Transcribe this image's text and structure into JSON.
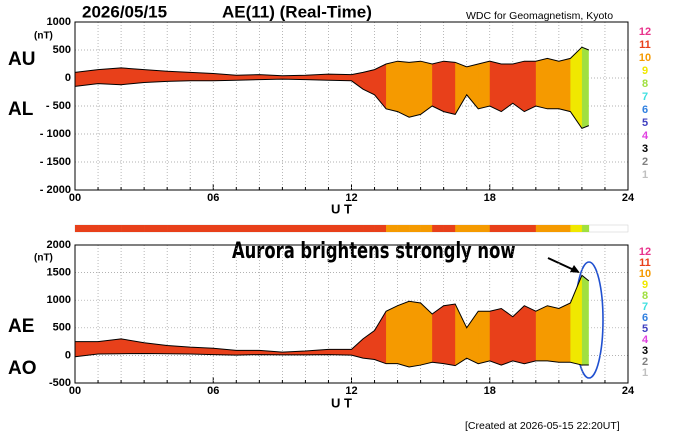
{
  "chart_data": [
    {
      "type": "band",
      "title": "2026/05/15",
      "subtitle": "AE(11) (Real-Time)",
      "source": "WDC for Geomagnetism, Kyoto",
      "y_unit": "(nT)",
      "x_label": "U T",
      "x": [
        0,
        1,
        2,
        3,
        4,
        5,
        6,
        7,
        8,
        9,
        10,
        11,
        12,
        12.5,
        13,
        13.5,
        14,
        14.5,
        15,
        15.5,
        16,
        16.5,
        17,
        17.5,
        18,
        18.5,
        19,
        19.5,
        20,
        20.5,
        21,
        21.5,
        22,
        22.3
      ],
      "series": [
        {
          "name": "AU",
          "color": "#000000",
          "values": [
            100,
            150,
            180,
            150,
            120,
            100,
            80,
            50,
            60,
            40,
            50,
            70,
            60,
            100,
            150,
            250,
            300,
            280,
            300,
            250,
            300,
            280,
            200,
            250,
            300,
            250,
            250,
            300,
            300,
            350,
            300,
            350,
            550,
            500
          ]
        },
        {
          "name": "AL",
          "color": "#000000",
          "values": [
            -150,
            -100,
            -120,
            -80,
            -60,
            -50,
            -50,
            -40,
            -30,
            -20,
            -30,
            -40,
            -50,
            -200,
            -300,
            -550,
            -600,
            -700,
            -650,
            -500,
            -600,
            -650,
            -300,
            -550,
            -500,
            -600,
            -450,
            -600,
            -500,
            -550,
            -550,
            -600,
            -900,
            -850
          ]
        }
      ],
      "stations": [
        11,
        11,
        11,
        11,
        11,
        11,
        11,
        11,
        11,
        11,
        11,
        11,
        11,
        11,
        11,
        10,
        10,
        10,
        10,
        11,
        11,
        10,
        10,
        10,
        11,
        11,
        11,
        11,
        10,
        10,
        10,
        9,
        8
      ],
      "levels": [
        12,
        11,
        10,
        9,
        8,
        7,
        6,
        5,
        4,
        3,
        2,
        1
      ],
      "level_colors": [
        "#e8348c",
        "#e8401a",
        "#f59a00",
        "#f0e800",
        "#a0e040",
        "#40e0e0",
        "#3080e0",
        "#4040c0",
        "#e040e0",
        "#000000",
        "#808080",
        "#c0c0c0"
      ],
      "xlim": [
        0,
        24
      ],
      "xticks": [
        {
          "value": 0,
          "label": "00"
        },
        {
          "value": 6,
          "label": "06"
        },
        12,
        18,
        24
      ],
      "x_minor_ticks": [
        1,
        2,
        3,
        4,
        5,
        7,
        8,
        9,
        10,
        11,
        13,
        14,
        15,
        16,
        17,
        19,
        20,
        21,
        22,
        23
      ],
      "ylim": [
        -2000,
        1000
      ],
      "yticks": [
        1000,
        500,
        0,
        {
          "value": -500,
          "label": "- 500"
        },
        {
          "value": -1000,
          "label": "- 1000"
        },
        {
          "value": -1500,
          "label": "- 1500"
        },
        {
          "value": -2000,
          "label": "- 2000"
        }
      ],
      "grid": true
    },
    {
      "type": "band",
      "y_unit": "(nT)",
      "x_label": "U T",
      "annotation": "Aurora brightens strongly now",
      "created": "[Created at 2026-05-15 22:20UT]",
      "x": [
        0,
        1,
        2,
        3,
        4,
        5,
        6,
        7,
        8,
        9,
        10,
        11,
        12,
        12.5,
        13,
        13.5,
        14,
        14.5,
        15,
        15.5,
        16,
        16.5,
        17,
        17.5,
        18,
        18.5,
        19,
        19.5,
        20,
        20.5,
        21,
        21.5,
        22,
        22.3
      ],
      "series": [
        {
          "name": "AE",
          "color": "#000000",
          "values": [
            250,
            250,
            300,
            230,
            180,
            150,
            130,
            90,
            90,
            60,
            80,
            110,
            110,
            300,
            450,
            800,
            900,
            980,
            950,
            750,
            900,
            930,
            500,
            800,
            800,
            850,
            700,
            900,
            800,
            900,
            850,
            950,
            1450,
            1350
          ]
        },
        {
          "name": "AO",
          "color": "#000000",
          "values": [
            -25,
            25,
            30,
            35,
            30,
            25,
            15,
            5,
            15,
            10,
            10,
            15,
            5,
            -50,
            -75,
            -150,
            -150,
            -210,
            -175,
            -125,
            -150,
            -185,
            -50,
            -150,
            -100,
            -175,
            -100,
            -150,
            -100,
            -100,
            -125,
            -125,
            -175,
            -175
          ]
        }
      ],
      "stations": [
        11,
        11,
        11,
        11,
        11,
        11,
        11,
        11,
        11,
        11,
        11,
        11,
        11,
        11,
        11,
        10,
        10,
        10,
        10,
        11,
        11,
        10,
        10,
        10,
        11,
        11,
        11,
        11,
        10,
        10,
        10,
        9,
        8
      ],
      "levels": [
        12,
        11,
        10,
        9,
        8,
        7,
        6,
        5,
        4,
        3,
        2,
        1
      ],
      "level_colors": [
        "#e8348c",
        "#e8401a",
        "#f59a00",
        "#f0e800",
        "#a0e040",
        "#40e0e0",
        "#3080e0",
        "#4040c0",
        "#e040e0",
        "#000000",
        "#808080",
        "#c0c0c0"
      ],
      "xlim": [
        0,
        24
      ],
      "xticks": [
        {
          "value": 0,
          "label": "00"
        },
        {
          "value": 6,
          "label": "06"
        },
        12,
        18,
        24
      ],
      "x_minor_ticks": [
        1,
        2,
        3,
        4,
        5,
        7,
        8,
        9,
        10,
        11,
        13,
        14,
        15,
        16,
        17,
        19,
        20,
        21,
        22,
        23
      ],
      "ylim": [
        -500,
        2000
      ],
      "yticks": [
        2000,
        1500,
        1000,
        500,
        0,
        -500
      ],
      "grid": true
    }
  ]
}
